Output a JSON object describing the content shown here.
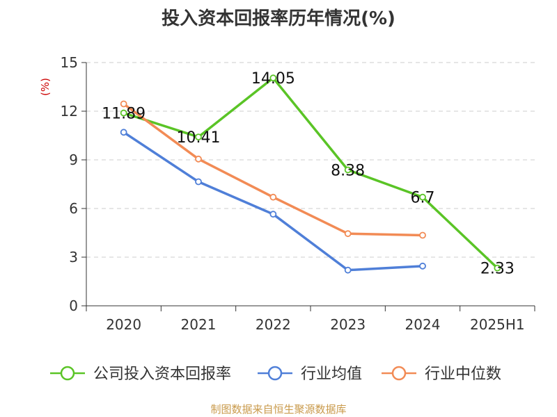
{
  "chart_data": {
    "type": "line",
    "title": "投入资本回报率历年情况(%)",
    "y_unit": "(%)",
    "categories": [
      "2020",
      "2021",
      "2022",
      "2023",
      "2024",
      "2025H1"
    ],
    "ylim": [
      0,
      15
    ],
    "yticks": [
      0,
      3,
      6,
      9,
      12,
      15
    ],
    "grid": true,
    "legend_position": "bottom",
    "series": [
      {
        "name": "公司投入资本回报率",
        "color": "#5ac426",
        "values": [
          11.89,
          10.41,
          14.05,
          8.38,
          6.7,
          2.33
        ],
        "show_labels": true
      },
      {
        "name": "行业均值",
        "color": "#4f7fd8",
        "values": [
          10.7,
          7.65,
          5.65,
          2.2,
          2.45,
          null
        ],
        "show_labels": false
      },
      {
        "name": "行业中位数",
        "color": "#f28b55",
        "values": [
          12.45,
          9.05,
          6.7,
          4.45,
          4.35,
          null
        ],
        "show_labels": false
      }
    ]
  },
  "footer": "制图数据来自恒生聚源数据库"
}
